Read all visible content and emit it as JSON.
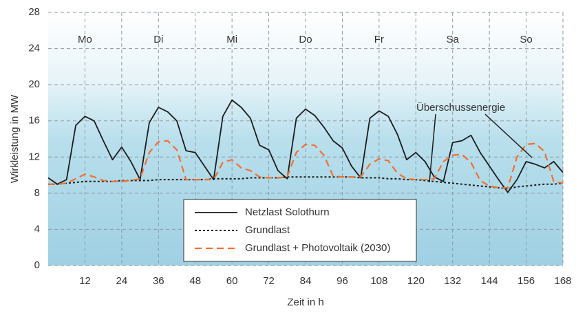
{
  "chart_data": {
    "type": "line",
    "xlabel": "Zeit in h",
    "ylabel": "Wirkleistung in MW",
    "day_labels": [
      "Mo",
      "Di",
      "Mi",
      "Do",
      "Fr",
      "Sa",
      "So"
    ],
    "annotation": "Überschussenergie",
    "xlim": [
      0,
      168
    ],
    "xticks": [
      12,
      24,
      36,
      48,
      60,
      72,
      84,
      96,
      108,
      120,
      132,
      144,
      156,
      168
    ],
    "ylim": [
      0,
      28
    ],
    "yticks": [
      0,
      4,
      8,
      12,
      16,
      20,
      24,
      28
    ],
    "grid": true,
    "x": [
      0,
      3,
      6,
      9,
      12,
      15,
      18,
      21,
      24,
      27,
      30,
      33,
      36,
      39,
      42,
      45,
      48,
      51,
      54,
      57,
      60,
      63,
      66,
      69,
      72,
      75,
      78,
      81,
      84,
      87,
      90,
      93,
      96,
      99,
      102,
      105,
      108,
      111,
      114,
      117,
      120,
      123,
      126,
      129,
      132,
      135,
      138,
      141,
      144,
      147,
      150,
      153,
      156,
      159,
      162,
      165,
      168
    ],
    "series": [
      {
        "name": "Netzlast Solothurn",
        "color": "#1a1a1a",
        "style": "solid",
        "values": [
          9.7,
          9.0,
          9.5,
          15.5,
          16.5,
          16.0,
          13.8,
          11.7,
          13.1,
          11.5,
          9.5,
          15.8,
          17.5,
          17.0,
          16.0,
          12.7,
          12.5,
          11.0,
          9.5,
          16.5,
          18.3,
          17.5,
          16.3,
          13.3,
          12.8,
          10.5,
          9.6,
          16.3,
          17.3,
          16.6,
          15.3,
          13.8,
          13.0,
          11.0,
          9.7,
          16.3,
          17.1,
          16.5,
          14.5,
          11.7,
          12.5,
          11.5,
          9.8,
          9.3,
          13.6,
          13.8,
          14.4,
          12.5,
          11.0,
          9.5,
          8.1,
          9.5,
          11.5,
          11.2,
          10.8,
          11.5,
          10.3
        ]
      },
      {
        "name": "Grundlast",
        "color": "#1a1a1a",
        "style": "dotted",
        "values": [
          9.0,
          9.0,
          9.1,
          9.2,
          9.3,
          9.3,
          9.3,
          9.3,
          9.4,
          9.4,
          9.4,
          9.4,
          9.5,
          9.5,
          9.5,
          9.5,
          9.5,
          9.5,
          9.6,
          9.6,
          9.6,
          9.6,
          9.7,
          9.7,
          9.7,
          9.7,
          9.8,
          9.8,
          9.8,
          9.8,
          9.8,
          9.8,
          9.8,
          9.8,
          9.7,
          9.7,
          9.7,
          9.6,
          9.6,
          9.5,
          9.5,
          9.4,
          9.3,
          9.2,
          9.1,
          9.0,
          8.9,
          8.8,
          8.7,
          8.6,
          8.5,
          8.7,
          8.8,
          8.9,
          9.0,
          9.0,
          9.1
        ]
      },
      {
        "name": "Grundlast + Photovoltaik (2030)",
        "color": "#f07030",
        "style": "dashed",
        "values": [
          9.0,
          9.0,
          9.1,
          9.6,
          10.1,
          9.8,
          9.4,
          9.3,
          9.3,
          9.4,
          9.6,
          12.5,
          13.7,
          13.8,
          12.8,
          9.5,
          9.5,
          9.5,
          9.5,
          11.4,
          11.7,
          10.8,
          10.5,
          9.8,
          9.7,
          9.7,
          9.8,
          12.5,
          13.4,
          13.3,
          12.2,
          9.9,
          9.8,
          9.8,
          9.8,
          11.2,
          11.8,
          11.6,
          10.2,
          9.6,
          9.5,
          9.5,
          9.6,
          11.5,
          12.2,
          12.3,
          11.4,
          9.4,
          8.8,
          8.6,
          8.6,
          12.0,
          13.4,
          13.5,
          12.6,
          9.3,
          9.1
        ]
      }
    ]
  }
}
